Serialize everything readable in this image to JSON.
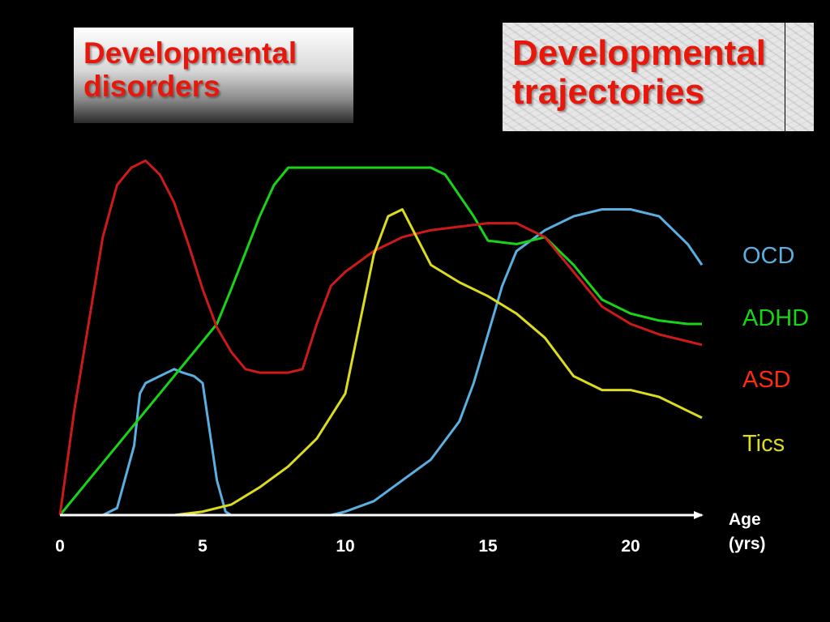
{
  "slide": {
    "title_left": [
      "Developmental",
      "disorders"
    ],
    "title_right": [
      "Developmental",
      "trajectories"
    ],
    "title_color": "#e8170b"
  },
  "chart_data": {
    "type": "line",
    "title": "",
    "xlabel": [
      "Age",
      "(yrs)"
    ],
    "ylabel": "",
    "xlim": [
      0,
      22.5
    ],
    "ylim": [
      0,
      1
    ],
    "xticks": [
      0,
      5,
      10,
      15,
      20
    ],
    "grid": false,
    "legend_position": "right",
    "series": [
      {
        "name": "OCD",
        "color": "#5aaee0",
        "x": [
          0,
          1,
          1.5,
          2,
          2.6,
          2.8,
          3,
          3.5,
          4,
          4.3,
          4.7,
          5,
          5.5,
          5.8,
          6,
          6.3,
          7,
          8,
          9,
          9.5,
          10,
          11,
          12,
          13,
          14,
          14.5,
          15,
          15.5,
          16,
          17,
          18,
          19,
          20,
          21,
          22,
          22.5
        ],
        "y": [
          0,
          0,
          0,
          0.02,
          0.2,
          0.35,
          0.38,
          0.4,
          0.42,
          0.41,
          0.4,
          0.38,
          0.1,
          0.01,
          0,
          0,
          0,
          0,
          0,
          0,
          0.01,
          0.04,
          0.1,
          0.16,
          0.27,
          0.38,
          0.52,
          0.66,
          0.76,
          0.82,
          0.86,
          0.88,
          0.88,
          0.86,
          0.78,
          0.72
        ]
      },
      {
        "name": "ADHD",
        "color": "#18d418",
        "x": [
          0,
          1,
          2,
          3,
          4,
          5,
          5.5,
          6,
          7,
          7.5,
          8,
          9,
          10,
          11,
          12,
          13,
          13.5,
          14,
          14.5,
          15,
          16,
          17,
          18,
          19,
          20,
          21,
          22,
          22.5
        ],
        "y": [
          0,
          0.1,
          0.2,
          0.3,
          0.4,
          0.5,
          0.55,
          0.65,
          0.86,
          0.95,
          1.0,
          1.0,
          1.0,
          1.0,
          1.0,
          1.0,
          0.98,
          0.92,
          0.86,
          0.79,
          0.78,
          0.8,
          0.72,
          0.62,
          0.58,
          0.56,
          0.55,
          0.55
        ]
      },
      {
        "name": "ASD",
        "color": "#cc1a1a",
        "x": [
          0,
          0.5,
          1,
          1.5,
          2,
          2.5,
          3,
          3.5,
          4,
          4.5,
          5,
          5.5,
          6,
          6.5,
          7,
          8,
          8.5,
          9,
          9.5,
          10,
          11,
          12,
          13,
          14,
          15,
          16,
          17,
          18,
          19,
          20,
          21,
          22,
          22.5
        ],
        "y": [
          0,
          0.3,
          0.55,
          0.8,
          0.95,
          1.0,
          1.02,
          0.98,
          0.9,
          0.78,
          0.65,
          0.54,
          0.47,
          0.42,
          0.41,
          0.41,
          0.42,
          0.55,
          0.66,
          0.7,
          0.76,
          0.8,
          0.82,
          0.83,
          0.84,
          0.84,
          0.8,
          0.7,
          0.6,
          0.55,
          0.52,
          0.5,
          0.49
        ]
      },
      {
        "name": "Tics",
        "color": "#dcdc1e",
        "x": [
          0,
          2,
          4,
          5,
          6,
          7,
          8,
          9,
          10,
          10.5,
          11,
          11.5,
          12,
          12.5,
          13,
          14,
          15,
          16,
          17,
          18,
          19,
          20,
          21,
          22,
          22.5
        ],
        "y": [
          0,
          0,
          0,
          0.01,
          0.03,
          0.08,
          0.14,
          0.22,
          0.35,
          0.55,
          0.75,
          0.86,
          0.88,
          0.8,
          0.72,
          0.67,
          0.63,
          0.58,
          0.51,
          0.4,
          0.36,
          0.36,
          0.34,
          0.3,
          0.28
        ]
      }
    ]
  }
}
